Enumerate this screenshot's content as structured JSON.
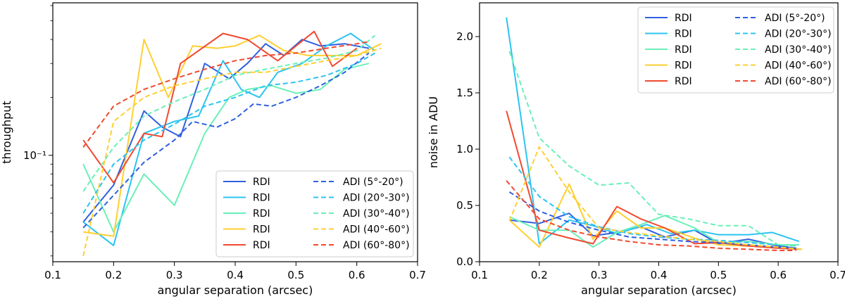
{
  "chart_data": [
    {
      "type": "line",
      "yscale": "log",
      "xlabel": "angular separation (arcsec)",
      "ylabel": "throughput",
      "xlim": [
        0.1,
        0.7
      ],
      "ylim": [
        0.028,
        0.62
      ],
      "xticks": [
        0.1,
        0.2,
        0.3,
        0.4,
        0.5,
        0.6,
        0.7
      ],
      "xtick_labels": [
        "0.1",
        "0.2",
        "0.3",
        "0.4",
        "0.5",
        "0.6",
        "0.7"
      ],
      "yticks": [
        0.1
      ],
      "ytick_labels": [
        "10⁻¹"
      ],
      "legend_position": "lower-right",
      "series": [
        {
          "name": "RDI",
          "color": "#3060e0",
          "style": "solid",
          "x": [
            0.15,
            0.2,
            0.25,
            0.28,
            0.31,
            0.35,
            0.39,
            0.42,
            0.45,
            0.48,
            0.51,
            0.54,
            0.58,
            0.62
          ],
          "y": [
            0.045,
            0.07,
            0.17,
            0.14,
            0.125,
            0.3,
            0.25,
            0.3,
            0.38,
            0.33,
            0.4,
            0.37,
            0.38,
            0.36
          ]
        },
        {
          "name": "RDI",
          "color": "#2bc4f0",
          "style": "solid",
          "x": [
            0.15,
            0.2,
            0.25,
            0.3,
            0.34,
            0.38,
            0.41,
            0.44,
            0.47,
            0.51,
            0.55,
            0.59,
            0.63
          ],
          "y": [
            0.045,
            0.034,
            0.13,
            0.15,
            0.16,
            0.31,
            0.22,
            0.2,
            0.27,
            0.3,
            0.37,
            0.43,
            0.35
          ]
        },
        {
          "name": "RDI",
          "color": "#6af0b8",
          "style": "solid",
          "x": [
            0.15,
            0.2,
            0.25,
            0.3,
            0.35,
            0.39,
            0.42,
            0.46,
            0.5,
            0.54,
            0.58,
            0.62
          ],
          "y": [
            0.09,
            0.04,
            0.08,
            0.055,
            0.13,
            0.2,
            0.22,
            0.23,
            0.21,
            0.22,
            0.28,
            0.3
          ]
        },
        {
          "name": "RDI",
          "color": "#ffcf30",
          "style": "solid",
          "x": [
            0.15,
            0.2,
            0.25,
            0.29,
            0.33,
            0.37,
            0.4,
            0.44,
            0.48,
            0.52,
            0.56,
            0.6,
            0.64
          ],
          "y": [
            0.04,
            0.038,
            0.4,
            0.2,
            0.37,
            0.36,
            0.37,
            0.42,
            0.35,
            0.33,
            0.33,
            0.33,
            0.38
          ]
        },
        {
          "name": "RDI",
          "color": "#f04a30",
          "style": "solid",
          "x": [
            0.15,
            0.2,
            0.25,
            0.28,
            0.31,
            0.38,
            0.42,
            0.47,
            0.5,
            0.53,
            0.56,
            0.6
          ],
          "y": [
            0.12,
            0.072,
            0.13,
            0.125,
            0.3,
            0.43,
            0.4,
            0.31,
            0.37,
            0.44,
            0.29,
            0.36
          ]
        },
        {
          "name": "ADI (5°-20°)",
          "color": "#3060e0",
          "style": "dashed",
          "x": [
            0.15,
            0.2,
            0.25,
            0.3,
            0.33,
            0.37,
            0.4,
            0.43,
            0.46,
            0.5,
            0.54,
            0.58,
            0.62
          ],
          "y": [
            0.042,
            0.062,
            0.092,
            0.12,
            0.15,
            0.14,
            0.155,
            0.185,
            0.18,
            0.2,
            0.23,
            0.27,
            0.34
          ]
        },
        {
          "name": "ADI (20°-30°)",
          "color": "#2bc4f0",
          "style": "dashed",
          "x": [
            0.15,
            0.2,
            0.25,
            0.3,
            0.35,
            0.4,
            0.45,
            0.5,
            0.55,
            0.6,
            0.63
          ],
          "y": [
            0.05,
            0.09,
            0.12,
            0.145,
            0.18,
            0.2,
            0.23,
            0.24,
            0.26,
            0.3,
            0.34
          ]
        },
        {
          "name": "ADI (30°-40°)",
          "color": "#6af0b8",
          "style": "dashed",
          "x": [
            0.15,
            0.2,
            0.25,
            0.3,
            0.35,
            0.4,
            0.45,
            0.5,
            0.55,
            0.6,
            0.63
          ],
          "y": [
            0.065,
            0.11,
            0.16,
            0.19,
            0.22,
            0.26,
            0.28,
            0.3,
            0.32,
            0.35,
            0.42
          ]
        },
        {
          "name": "ADI (40°-60°)",
          "color": "#ffcf30",
          "style": "dashed",
          "x": [
            0.15,
            0.2,
            0.25,
            0.3,
            0.35,
            0.4,
            0.45,
            0.5,
            0.55,
            0.6,
            0.64
          ],
          "y": [
            0.03,
            0.15,
            0.2,
            0.23,
            0.25,
            0.27,
            0.27,
            0.29,
            0.31,
            0.33,
            0.36
          ]
        },
        {
          "name": "ADI (60°-80°)",
          "color": "#f04a30",
          "style": "dashed",
          "x": [
            0.15,
            0.2,
            0.25,
            0.3,
            0.35,
            0.4,
            0.45,
            0.5,
            0.55,
            0.6,
            0.62
          ],
          "y": [
            0.11,
            0.18,
            0.22,
            0.25,
            0.28,
            0.31,
            0.33,
            0.34,
            0.36,
            0.38,
            0.39
          ]
        }
      ]
    },
    {
      "type": "line",
      "yscale": "linear",
      "xlabel": "angular separation (arcsec)",
      "ylabel": "noise in ADU",
      "xlim": [
        0.1,
        0.7
      ],
      "ylim": [
        0.0,
        2.3
      ],
      "xticks": [
        0.1,
        0.2,
        0.3,
        0.4,
        0.5,
        0.6,
        0.7
      ],
      "xtick_labels": [
        "0.1",
        "0.2",
        "0.3",
        "0.4",
        "0.5",
        "0.6",
        "0.7"
      ],
      "yticks": [
        0.0,
        0.5,
        1.0,
        1.5,
        2.0
      ],
      "ytick_labels": [
        "0.0",
        "0.5",
        "1.0",
        "1.5",
        "2.0"
      ],
      "legend_position": "top-right",
      "series": [
        {
          "name": "RDI",
          "color": "#3060e0",
          "style": "solid",
          "x": [
            0.15,
            0.2,
            0.25,
            0.29,
            0.33,
            0.37,
            0.41,
            0.46,
            0.5,
            0.55,
            0.6,
            0.63
          ],
          "y": [
            0.37,
            0.34,
            0.43,
            0.23,
            0.26,
            0.31,
            0.22,
            0.28,
            0.16,
            0.2,
            0.14,
            0.12
          ]
        },
        {
          "name": "RDI",
          "color": "#2bc4f0",
          "style": "solid",
          "x": [
            0.145,
            0.2,
            0.25,
            0.29,
            0.33,
            0.38,
            0.42,
            0.46,
            0.5,
            0.55,
            0.59,
            0.635
          ],
          "y": [
            2.17,
            0.16,
            0.37,
            0.32,
            0.25,
            0.33,
            0.25,
            0.28,
            0.24,
            0.24,
            0.26,
            0.18
          ]
        },
        {
          "name": "RDI",
          "color": "#6af0b8",
          "style": "solid",
          "x": [
            0.15,
            0.2,
            0.25,
            0.29,
            0.33,
            0.37,
            0.41,
            0.46,
            0.5,
            0.55,
            0.6,
            0.635
          ],
          "y": [
            0.4,
            0.28,
            0.28,
            0.13,
            0.26,
            0.33,
            0.41,
            0.3,
            0.17,
            0.18,
            0.15,
            0.15
          ]
        },
        {
          "name": "RDI",
          "color": "#ffcf30",
          "style": "solid",
          "x": [
            0.15,
            0.2,
            0.25,
            0.29,
            0.33,
            0.37,
            0.41,
            0.46,
            0.5,
            0.55,
            0.6,
            0.64
          ],
          "y": [
            0.37,
            0.13,
            0.69,
            0.2,
            0.45,
            0.3,
            0.3,
            0.21,
            0.15,
            0.14,
            0.13,
            0.11
          ]
        },
        {
          "name": "RDI",
          "color": "#f04a30",
          "style": "solid",
          "x": [
            0.145,
            0.2,
            0.25,
            0.29,
            0.33,
            0.37,
            0.41,
            0.46,
            0.5,
            0.55,
            0.6,
            0.635
          ],
          "y": [
            1.34,
            0.28,
            0.21,
            0.16,
            0.49,
            0.38,
            0.3,
            0.16,
            0.17,
            0.14,
            0.12,
            0.11
          ]
        },
        {
          "name": "ADI (5°-20°)",
          "color": "#3060e0",
          "style": "dashed",
          "x": [
            0.15,
            0.2,
            0.25,
            0.3,
            0.35,
            0.4,
            0.45,
            0.5,
            0.55,
            0.6,
            0.63
          ],
          "y": [
            0.62,
            0.45,
            0.35,
            0.28,
            0.22,
            0.2,
            0.18,
            0.17,
            0.15,
            0.13,
            0.12
          ]
        },
        {
          "name": "ADI (20°-30°)",
          "color": "#2bc4f0",
          "style": "dashed",
          "x": [
            0.15,
            0.2,
            0.25,
            0.3,
            0.35,
            0.4,
            0.45,
            0.5,
            0.55,
            0.6,
            0.63
          ],
          "y": [
            0.93,
            0.58,
            0.4,
            0.31,
            0.25,
            0.22,
            0.2,
            0.19,
            0.17,
            0.15,
            0.14
          ]
        },
        {
          "name": "ADI (30°-40°)",
          "color": "#6af0b8",
          "style": "dashed",
          "x": [
            0.15,
            0.2,
            0.25,
            0.3,
            0.35,
            0.4,
            0.45,
            0.5,
            0.55,
            0.6,
            0.63
          ],
          "y": [
            1.87,
            1.1,
            0.85,
            0.68,
            0.7,
            0.42,
            0.38,
            0.32,
            0.32,
            0.15,
            0.14
          ]
        },
        {
          "name": "ADI (40°-60°)",
          "color": "#ffcf30",
          "style": "dashed",
          "x": [
            0.15,
            0.2,
            0.25,
            0.3,
            0.35,
            0.4,
            0.45,
            0.5,
            0.55,
            0.6,
            0.64
          ],
          "y": [
            0.36,
            1.02,
            0.62,
            0.3,
            0.26,
            0.23,
            0.2,
            0.18,
            0.15,
            0.13,
            0.11
          ]
        },
        {
          "name": "ADI (60°-80°)",
          "color": "#f04a30",
          "style": "dashed",
          "x": [
            0.145,
            0.2,
            0.25,
            0.3,
            0.35,
            0.4,
            0.45,
            0.5,
            0.55,
            0.6,
            0.63
          ],
          "y": [
            0.72,
            0.38,
            0.28,
            0.22,
            0.18,
            0.15,
            0.14,
            0.12,
            0.11,
            0.1,
            0.1
          ]
        }
      ]
    }
  ]
}
